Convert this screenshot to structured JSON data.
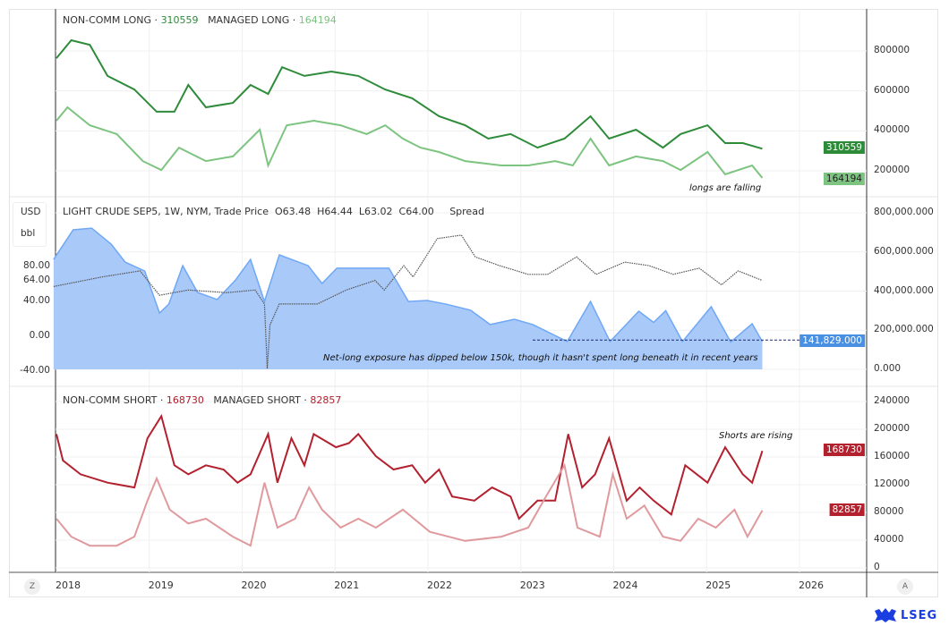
{
  "legend": {
    "top": [
      {
        "label": "NON-COMM LONG",
        "value": "310559",
        "color": "#2e8b3a"
      },
      {
        "label": "MANAGED LONG",
        "value": "164194",
        "color": "#7cc47f"
      }
    ],
    "bottom": [
      {
        "label": "NON-COMM SHORT",
        "value": "168730",
        "color": "#b3202e"
      },
      {
        "label": "MANAGED SHORT",
        "value": "82857",
        "color": "#e09a9e"
      }
    ],
    "middle": {
      "symbol": "LIGHT CRUDE SEP5, 1W, NYM, Trade Price",
      "open": "O63.48",
      "high": "H64.44",
      "low": "L63.02",
      "close": "C64.00",
      "extra": "Spread"
    }
  },
  "left_unit": {
    "currency": "USD",
    "unit": "bbl"
  },
  "annotations": {
    "top": "longs are falling",
    "middle": "Net-long exposure has dipped below 150k, though it hasn't spent long beneath it in recent years",
    "bottom": "Shorts are rising"
  },
  "axis_buttons": {
    "left": "Z",
    "right": "A"
  },
  "logo": "LSEG",
  "chart_data": [
    {
      "type": "line",
      "pane": "top",
      "yticks": [
        "800000",
        "600000",
        "400000",
        "200000"
      ],
      "ylim": [
        120000,
        1000000
      ],
      "series": [
        {
          "name": "NON-COMM LONG",
          "color": "#2e8b3a",
          "last": "310559",
          "points": [
            [
              2018.0,
              764
            ],
            [
              2018.16,
              854
            ],
            [
              2018.36,
              831
            ],
            [
              2018.55,
              675
            ],
            [
              2018.84,
              607
            ],
            [
              2019.08,
              496
            ],
            [
              2019.27,
              496
            ],
            [
              2019.42,
              630
            ],
            [
              2019.61,
              518
            ],
            [
              2019.9,
              540
            ],
            [
              2020.09,
              630
            ],
            [
              2020.28,
              585
            ],
            [
              2020.43,
              719
            ],
            [
              2020.67,
              675
            ],
            [
              2020.96,
              697
            ],
            [
              2021.25,
              675
            ],
            [
              2021.54,
              607
            ],
            [
              2021.83,
              563
            ],
            [
              2022.12,
              473
            ],
            [
              2022.4,
              428
            ],
            [
              2022.65,
              361
            ],
            [
              2022.89,
              384
            ],
            [
              2023.18,
              316
            ],
            [
              2023.47,
              361
            ],
            [
              2023.75,
              473
            ],
            [
              2023.95,
              361
            ],
            [
              2024.24,
              406
            ],
            [
              2024.53,
              316
            ],
            [
              2024.72,
              384
            ],
            [
              2025.01,
              428
            ],
            [
              2025.2,
              339
            ],
            [
              2025.39,
              339
            ],
            [
              2025.6,
              310.559
            ]
          ]
        },
        {
          "name": "MANAGED LONG",
          "color": "#7cc47f",
          "last": "164194",
          "points": [
            [
              2018.0,
              451
            ],
            [
              2018.12,
              518
            ],
            [
              2018.36,
              428
            ],
            [
              2018.65,
              384
            ],
            [
              2018.93,
              249
            ],
            [
              2019.13,
              204
            ],
            [
              2019.32,
              316
            ],
            [
              2019.61,
              249
            ],
            [
              2019.9,
              272
            ],
            [
              2020.19,
              406
            ],
            [
              2020.28,
              227
            ],
            [
              2020.48,
              428
            ],
            [
              2020.77,
              451
            ],
            [
              2021.06,
              428
            ],
            [
              2021.34,
              384
            ],
            [
              2021.54,
              428
            ],
            [
              2021.73,
              361
            ],
            [
              2021.92,
              316
            ],
            [
              2022.12,
              294
            ],
            [
              2022.4,
              249
            ],
            [
              2022.79,
              227
            ],
            [
              2023.08,
              227
            ],
            [
              2023.37,
              249
            ],
            [
              2023.56,
              227
            ],
            [
              2023.75,
              361
            ],
            [
              2023.95,
              227
            ],
            [
              2024.24,
              272
            ],
            [
              2024.53,
              249
            ],
            [
              2024.72,
              204
            ],
            [
              2025.01,
              294
            ],
            [
              2025.2,
              182
            ],
            [
              2025.49,
              227
            ],
            [
              2025.6,
              164.194
            ]
          ]
        }
      ]
    },
    {
      "type": "area+line",
      "pane": "middle",
      "yticks_right": [
        "800,000.000",
        "600,000.000",
        "400,000.000",
        "200,000.000",
        "0.000"
      ],
      "ylim_right": [
        -10000,
        850000
      ],
      "yticks_left": [
        "80.00",
        "64.00",
        "40.00",
        "0.00",
        "-40.00"
      ],
      "ylim_left": [
        -40,
        80
      ],
      "series": [
        {
          "name": "Spread",
          "kind": "area",
          "color": "#6fa8f5",
          "fill": "#a9c9f9",
          "last": "141,829.000",
          "points": [
            [
              2017.97,
              562
            ],
            [
              2018.18,
              713
            ],
            [
              2018.38,
              722
            ],
            [
              2018.59,
              640
            ],
            [
              2018.74,
              548
            ],
            [
              2018.95,
              503
            ],
            [
              2019.11,
              288
            ],
            [
              2019.21,
              333
            ],
            [
              2019.36,
              530
            ],
            [
              2019.52,
              393
            ],
            [
              2019.73,
              357
            ],
            [
              2019.93,
              457
            ],
            [
              2020.09,
              562
            ],
            [
              2020.24,
              347
            ],
            [
              2020.4,
              585
            ],
            [
              2020.71,
              530
            ],
            [
              2020.86,
              439
            ],
            [
              2021.02,
              517
            ],
            [
              2021.38,
              517
            ],
            [
              2021.58,
              517
            ],
            [
              2021.79,
              347
            ],
            [
              2021.99,
              352
            ],
            [
              2022.2,
              333
            ],
            [
              2022.46,
              302
            ],
            [
              2022.67,
              229
            ],
            [
              2022.93,
              256
            ],
            [
              2023.13,
              229
            ],
            [
              2023.5,
              142
            ],
            [
              2023.75,
              347
            ],
            [
              2023.96,
              142
            ],
            [
              2024.27,
              297
            ],
            [
              2024.43,
              240
            ],
            [
              2024.56,
              300
            ],
            [
              2024.74,
              142
            ],
            [
              2025.05,
              320
            ],
            [
              2025.26,
              140
            ],
            [
              2025.49,
              233
            ],
            [
              2025.6,
              141.829
            ]
          ]
        },
        {
          "name": "LIGHT CRUDE SEP5",
          "kind": "price",
          "color": "#555",
          "points": [
            [
              2017.97,
              57
            ],
            [
              2018.49,
              68
            ],
            [
              2018.9,
              75
            ],
            [
              2019.11,
              47
            ],
            [
              2019.42,
              53
            ],
            [
              2019.83,
              50
            ],
            [
              2020.14,
              53
            ],
            [
              2020.24,
              37
            ],
            [
              2020.27,
              -37
            ],
            [
              2020.3,
              13
            ],
            [
              2020.4,
              37
            ],
            [
              2020.81,
              37
            ],
            [
              2021.12,
              53
            ],
            [
              2021.43,
              64
            ],
            [
              2021.53,
              53
            ],
            [
              2021.74,
              81
            ],
            [
              2021.84,
              68
            ],
            [
              2022.1,
              112
            ],
            [
              2022.36,
              116
            ],
            [
              2022.51,
              91
            ],
            [
              2022.77,
              81
            ],
            [
              2023.08,
              71
            ],
            [
              2023.29,
              71
            ],
            [
              2023.6,
              91
            ],
            [
              2023.81,
              71
            ],
            [
              2024.12,
              85
            ],
            [
              2024.38,
              81
            ],
            [
              2024.64,
              71
            ],
            [
              2024.92,
              78
            ],
            [
              2025.16,
              59
            ],
            [
              2025.34,
              75
            ],
            [
              2025.6,
              64
            ]
          ]
        }
      ],
      "reference_line": 150000
    },
    {
      "type": "line",
      "pane": "bottom",
      "yticks": [
        "240000",
        "200000",
        "160000",
        "120000",
        "80000",
        "40000",
        "0"
      ],
      "ylim": [
        0,
        240000
      ],
      "series": [
        {
          "name": "NON-COMM SHORT",
          "color": "#b3202e",
          "last": "168730",
          "points": [
            [
              2018.0,
              193
            ],
            [
              2018.07,
              155
            ],
            [
              2018.26,
              135
            ],
            [
              2018.55,
              123
            ],
            [
              2018.84,
              116
            ],
            [
              2018.98,
              187
            ],
            [
              2019.13,
              219
            ],
            [
              2019.27,
              148
            ],
            [
              2019.42,
              135
            ],
            [
              2019.61,
              148
            ],
            [
              2019.8,
              142
            ],
            [
              2019.95,
              123
            ],
            [
              2020.09,
              135
            ],
            [
              2020.28,
              193
            ],
            [
              2020.38,
              123
            ],
            [
              2020.53,
              187
            ],
            [
              2020.67,
              148
            ],
            [
              2020.77,
              193
            ],
            [
              2021.01,
              174
            ],
            [
              2021.15,
              180
            ],
            [
              2021.25,
              193
            ],
            [
              2021.44,
              161
            ],
            [
              2021.63,
              142
            ],
            [
              2021.83,
              148
            ],
            [
              2021.97,
              123
            ],
            [
              2022.12,
              142
            ],
            [
              2022.26,
              103
            ],
            [
              2022.5,
              97
            ],
            [
              2022.69,
              116
            ],
            [
              2022.89,
              103
            ],
            [
              2022.98,
              71
            ],
            [
              2023.18,
              97
            ],
            [
              2023.37,
              97
            ],
            [
              2023.51,
              193
            ],
            [
              2023.66,
              116
            ],
            [
              2023.8,
              135
            ],
            [
              2023.95,
              187
            ],
            [
              2024.14,
              97
            ],
            [
              2024.28,
              116
            ],
            [
              2024.43,
              97
            ],
            [
              2024.62,
              77
            ],
            [
              2024.77,
              148
            ],
            [
              2025.01,
              123
            ],
            [
              2025.2,
              174
            ],
            [
              2025.39,
              135
            ],
            [
              2025.49,
              123
            ],
            [
              2025.6,
              168.73
            ]
          ]
        },
        {
          "name": "MANAGED SHORT",
          "color": "#e09a9e",
          "last": "82857",
          "points": [
            [
              2018.0,
              71
            ],
            [
              2018.16,
              45
            ],
            [
              2018.36,
              32
            ],
            [
              2018.65,
              32
            ],
            [
              2018.84,
              45
            ],
            [
              2018.98,
              97
            ],
            [
              2019.08,
              129
            ],
            [
              2019.22,
              84
            ],
            [
              2019.42,
              64
            ],
            [
              2019.61,
              71
            ],
            [
              2019.9,
              45
            ],
            [
              2020.09,
              32
            ],
            [
              2020.24,
              123
            ],
            [
              2020.38,
              58
            ],
            [
              2020.57,
              71
            ],
            [
              2020.72,
              116
            ],
            [
              2020.86,
              84
            ],
            [
              2021.06,
              58
            ],
            [
              2021.25,
              71
            ],
            [
              2021.44,
              58
            ],
            [
              2021.73,
              84
            ],
            [
              2022.02,
              52
            ],
            [
              2022.4,
              39
            ],
            [
              2022.79,
              45
            ],
            [
              2023.08,
              58
            ],
            [
              2023.27,
              103
            ],
            [
              2023.47,
              148
            ],
            [
              2023.61,
              58
            ],
            [
              2023.85,
              45
            ],
            [
              2023.99,
              135
            ],
            [
              2024.14,
              71
            ],
            [
              2024.33,
              90
            ],
            [
              2024.53,
              45
            ],
            [
              2024.72,
              39
            ],
            [
              2024.91,
              71
            ],
            [
              2025.1,
              58
            ],
            [
              2025.3,
              84
            ],
            [
              2025.44,
              45
            ],
            [
              2025.6,
              82.857
            ]
          ]
        }
      ]
    }
  ],
  "xaxis": {
    "ticks": [
      "2018",
      "2019",
      "2020",
      "2021",
      "2022",
      "2023",
      "2024",
      "2025",
      "2026"
    ]
  }
}
